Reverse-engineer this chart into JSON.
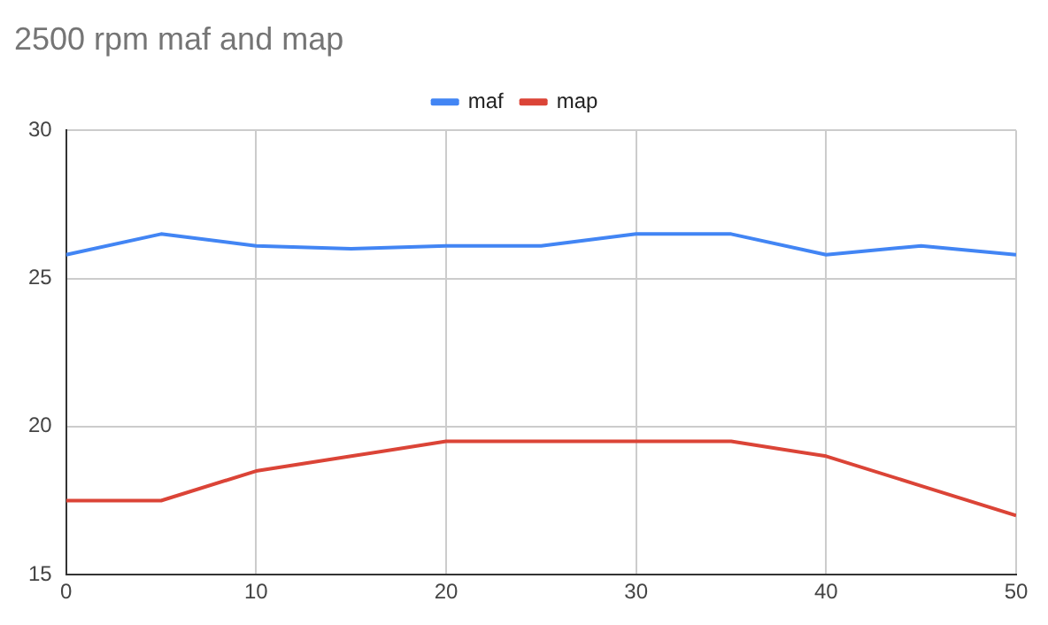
{
  "chart_data": {
    "type": "line",
    "title": "2500 rpm maf and map",
    "x": [
      0,
      5,
      10,
      15,
      20,
      25,
      30,
      35,
      40,
      45,
      50
    ],
    "series": [
      {
        "name": "maf",
        "color": "#4285f4",
        "values": [
          25.8,
          26.5,
          26.1,
          26.0,
          26.1,
          26.1,
          26.5,
          26.5,
          25.8,
          26.1,
          25.8
        ]
      },
      {
        "name": "map",
        "color": "#db4437",
        "values": [
          17.5,
          17.5,
          18.5,
          19.0,
          19.5,
          19.5,
          19.5,
          19.5,
          19.0,
          18.0,
          17.0
        ]
      }
    ],
    "xlim": [
      0,
      50
    ],
    "xticks": [
      0,
      10,
      20,
      30,
      40,
      50
    ],
    "ylim": [
      15,
      30
    ],
    "yticks": [
      15,
      20,
      25,
      30
    ],
    "grid": true,
    "legend": "top",
    "marker": "none",
    "line_style": "solid"
  }
}
